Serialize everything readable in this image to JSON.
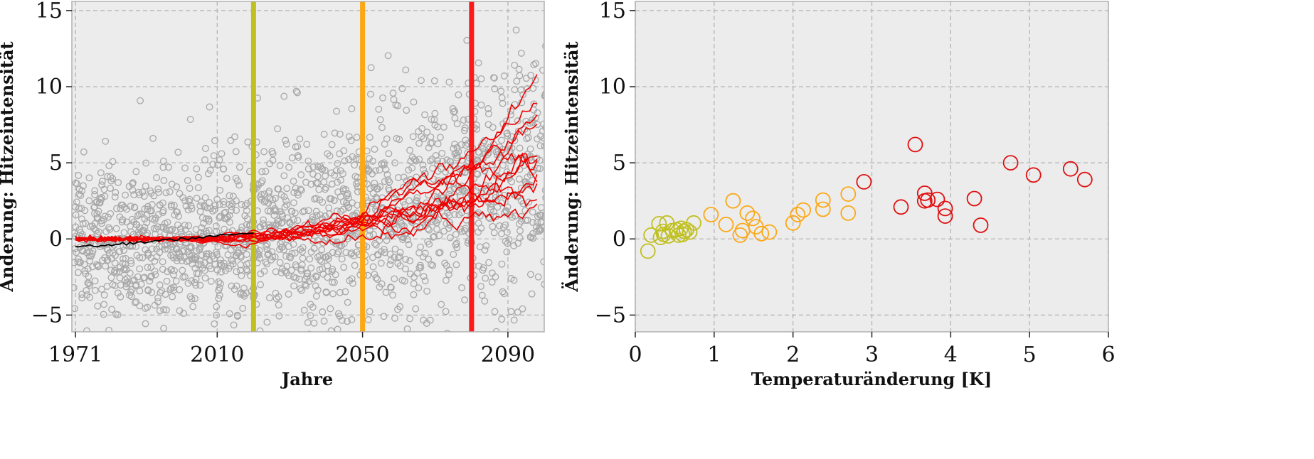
{
  "chart_data": [
    {
      "type": "line",
      "xlabel": "Jahre",
      "ylabel": "Änderung: Hitzeintensität",
      "xlim": [
        1970,
        2100
      ],
      "ylim": [
        -6.1,
        15.6
      ],
      "xticks": [
        1971,
        2010,
        2050,
        2090
      ],
      "yticks": [
        -5,
        0,
        5,
        10,
        15
      ],
      "grid": true,
      "background": "#ececec",
      "vertical_markers": [
        {
          "x": 2020,
          "color": "#c0c020"
        },
        {
          "x": 2050,
          "color": "#fca815"
        },
        {
          "x": 2080,
          "color": "#ff1a1a"
        }
      ],
      "scatter_style": {
        "color": "#a8a8a8",
        "marker": "open-circle"
      },
      "scatter_description_note": "",
      "series": [
        {
          "color": "#ee0000",
          "end_value": 10.2
        },
        {
          "color": "#ee0000",
          "end_value": 8.7
        },
        {
          "color": "#ee0000",
          "end_value": 7.8
        },
        {
          "color": "#ee0000",
          "end_value": 7.3
        },
        {
          "color": "#ee0000",
          "end_value": 6.6
        },
        {
          "color": "#ee0000",
          "end_value": 5.4
        },
        {
          "color": "#ee0000",
          "end_value": 5.0
        },
        {
          "color": "#ee0000",
          "end_value": 4.6
        },
        {
          "color": "#ee0000",
          "end_value": 4.2
        },
        {
          "color": "#ee0000",
          "end_value": 3.8
        },
        {
          "color": "#ee0000",
          "end_value": 3.3
        },
        {
          "color": "#ee0000",
          "end_value": 2.2
        }
      ],
      "observed_line_color": "#000000"
    },
    {
      "type": "scatter",
      "xlabel": "Temperaturänderung [K]",
      "ylabel": "Änderung: Hitzeintensität",
      "xlim": [
        0,
        6
      ],
      "ylim": [
        -6.1,
        15.6
      ],
      "xticks": [
        0,
        1,
        2,
        3,
        4,
        5,
        6
      ],
      "yticks": [
        -5,
        0,
        5,
        10,
        15
      ],
      "grid": true,
      "background": "#ececec",
      "groups": [
        {
          "color": "#c0c020",
          "points": [
            [
              0.16,
              -0.8
            ],
            [
              0.2,
              0.25
            ],
            [
              0.3,
              1.0
            ],
            [
              0.32,
              0.1
            ],
            [
              0.36,
              0.3
            ],
            [
              0.4,
              1.05
            ],
            [
              0.42,
              0.2
            ],
            [
              0.47,
              0.55
            ],
            [
              0.52,
              0.6
            ],
            [
              0.55,
              0.25
            ],
            [
              0.58,
              0.7
            ],
            [
              0.62,
              0.5
            ],
            [
              0.65,
              0.6
            ],
            [
              0.69,
              0.45
            ],
            [
              0.74,
              1.05
            ],
            [
              0.35,
              0.5
            ],
            [
              0.6,
              0.3
            ]
          ]
        },
        {
          "color": "#fca815",
          "points": [
            [
              0.96,
              1.6
            ],
            [
              1.15,
              0.95
            ],
            [
              1.24,
              2.5
            ],
            [
              1.33,
              0.25
            ],
            [
              1.36,
              0.55
            ],
            [
              1.42,
              1.7
            ],
            [
              1.49,
              1.35
            ],
            [
              1.53,
              0.8
            ],
            [
              1.6,
              0.35
            ],
            [
              1.7,
              0.45
            ],
            [
              2.0,
              1.05
            ],
            [
              2.06,
              1.6
            ],
            [
              2.13,
              1.9
            ],
            [
              2.38,
              2.55
            ],
            [
              2.38,
              1.95
            ],
            [
              2.7,
              2.95
            ],
            [
              2.7,
              1.7
            ]
          ]
        },
        {
          "color": "#e01010",
          "points": [
            [
              2.9,
              3.75
            ],
            [
              3.37,
              2.1
            ],
            [
              3.55,
              6.2
            ],
            [
              3.67,
              3.0
            ],
            [
              3.67,
              2.5
            ],
            [
              3.71,
              2.55
            ],
            [
              3.83,
              2.6
            ],
            [
              3.93,
              2.0
            ],
            [
              3.93,
              1.5
            ],
            [
              4.3,
              2.65
            ],
            [
              4.38,
              0.9
            ],
            [
              4.76,
              5.0
            ],
            [
              5.05,
              4.2
            ],
            [
              5.52,
              4.6
            ],
            [
              5.7,
              3.9
            ]
          ]
        }
      ]
    }
  ]
}
